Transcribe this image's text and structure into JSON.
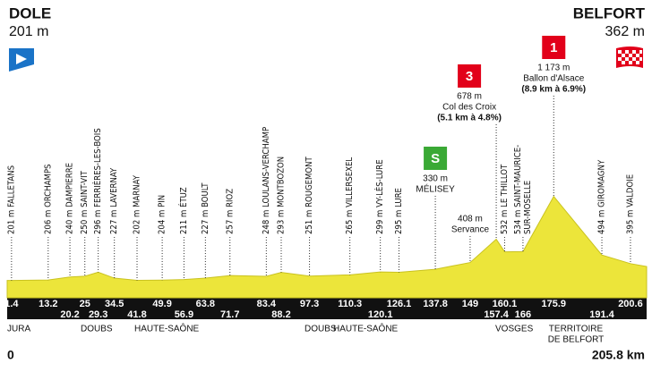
{
  "chart_data": {
    "type": "area",
    "start": {
      "name": "DOLE",
      "elevation": "201 m"
    },
    "finish": {
      "name": "BELFORT",
      "elevation": "362 m"
    },
    "x": [
      0,
      1.4,
      13.2,
      20.2,
      25,
      29.3,
      34.5,
      41.8,
      49.9,
      56.9,
      63.8,
      71.7,
      83.4,
      88.2,
      97.3,
      110.3,
      120.1,
      126.1,
      137.8,
      149,
      157.4,
      160.1,
      166,
      175.9,
      191.4,
      200.6,
      205.8
    ],
    "values": [
      201,
      201,
      206,
      240,
      250,
      296,
      227,
      202,
      204,
      211,
      227,
      257,
      248,
      293,
      251,
      265,
      299,
      295,
      330,
      408,
      678,
      532,
      534,
      1173,
      494,
      395,
      362
    ],
    "labels": [
      null,
      [
        "201 m FALLETANS"
      ],
      [
        "206 m ORCHAMPS"
      ],
      [
        "240 m DAMPIERRE"
      ],
      [
        "250 m SAINT-VIT"
      ],
      [
        "296 m FERRIÈRES-LES-BOIS"
      ],
      [
        "227 m LAVERNAY"
      ],
      [
        "202 m MARNAY"
      ],
      [
        "204 m PIN"
      ],
      [
        "211 m ÉTUZ"
      ],
      [
        "227 m BOULT"
      ],
      [
        "257 m RIOZ"
      ],
      [
        "248 m LOULANS-VERCHAMP"
      ],
      [
        "293 m MONTBOZON"
      ],
      [
        "251 m ROUGEMONT"
      ],
      [
        "265 m VILLERSEXEL"
      ],
      [
        "299 m VY-LÈS-LURE"
      ],
      [
        "295 m LURE"
      ],
      [
        "330 m",
        "MÉLISEY"
      ],
      [
        "408 m",
        "Servance"
      ],
      [
        "678 m",
        "Col des Croix",
        "(5.1 km à 4.8%)"
      ],
      [
        "532 m LE THILLOT"
      ],
      [
        "534 m SAINT-MAURICE-",
        "SUR-MOSELLE"
      ],
      [
        "1 173 m",
        "Ballon d'Alsace",
        "(8.9 km à 6.9%)"
      ],
      [
        "494 m GIROMAGNY"
      ],
      [
        "395 m VALDOIE"
      ],
      null
    ],
    "markers": {
      "18": "S",
      "20": "3",
      "23": "1"
    },
    "regions": [
      [
        "JURA"
      ],
      [
        "DOUBS"
      ],
      [
        "HAUTE-SAÔNE"
      ],
      [
        "DOUBS"
      ],
      [
        "HAUTE-SAÔNE"
      ],
      [
        "VOSGES"
      ],
      [
        "TERRITOIRE",
        "DE BELFORT"
      ]
    ],
    "distance_label": "205.8 km",
    "xlim": [
      0,
      205.8
    ],
    "ylim": [
      0,
      1200
    ],
    "color": "#ece53a"
  }
}
